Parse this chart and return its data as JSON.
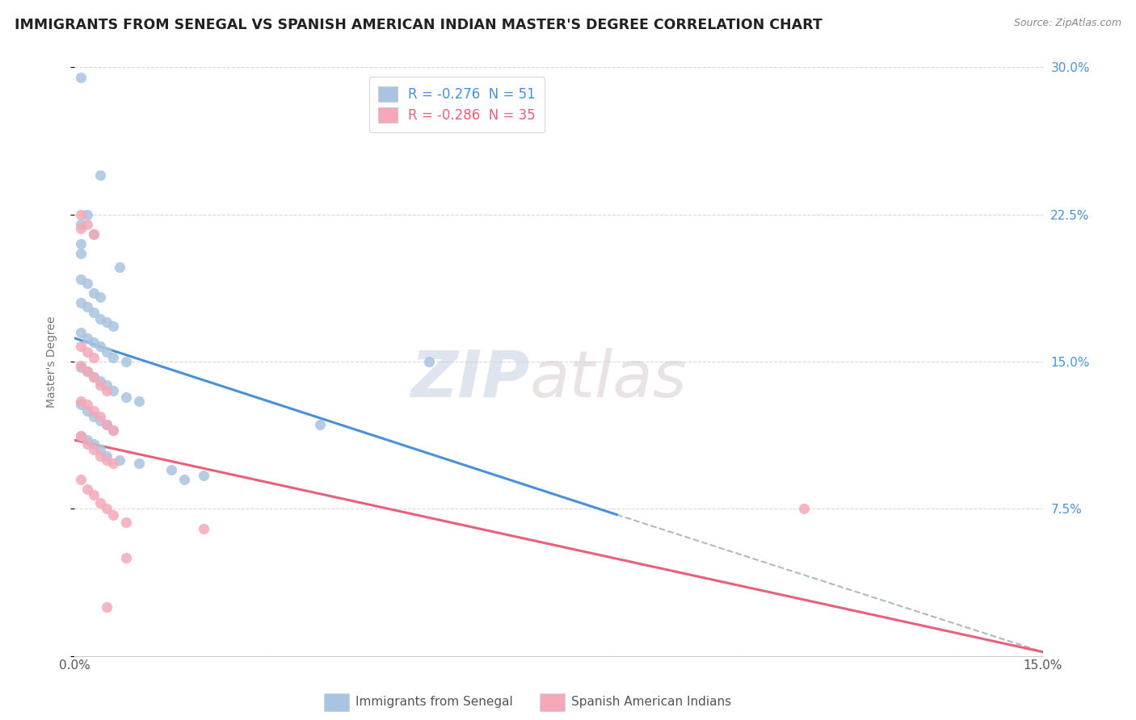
{
  "title": "IMMIGRANTS FROM SENEGAL VS SPANISH AMERICAN INDIAN MASTER'S DEGREE CORRELATION CHART",
  "source": "Source: ZipAtlas.com",
  "ylabel": "Master's Degree",
  "xlim": [
    0.0,
    0.15
  ],
  "ylim": [
    0.0,
    0.3
  ],
  "legend_entries": [
    {
      "label": "R = -0.276  N = 51",
      "color": "#a8c4e0"
    },
    {
      "label": "R = -0.286  N = 35",
      "color": "#f4a8b8"
    }
  ],
  "watermark_zip": "ZIP",
  "watermark_atlas": "atlas",
  "blue_scatter": [
    [
      0.001,
      0.295
    ],
    [
      0.004,
      0.245
    ],
    [
      0.002,
      0.225
    ],
    [
      0.001,
      0.22
    ],
    [
      0.003,
      0.215
    ],
    [
      0.001,
      0.21
    ],
    [
      0.001,
      0.205
    ],
    [
      0.007,
      0.198
    ],
    [
      0.001,
      0.192
    ],
    [
      0.002,
      0.19
    ],
    [
      0.003,
      0.185
    ],
    [
      0.004,
      0.183
    ],
    [
      0.001,
      0.18
    ],
    [
      0.002,
      0.178
    ],
    [
      0.003,
      0.175
    ],
    [
      0.004,
      0.172
    ],
    [
      0.005,
      0.17
    ],
    [
      0.006,
      0.168
    ],
    [
      0.001,
      0.165
    ],
    [
      0.002,
      0.162
    ],
    [
      0.003,
      0.16
    ],
    [
      0.004,
      0.158
    ],
    [
      0.005,
      0.155
    ],
    [
      0.006,
      0.152
    ],
    [
      0.008,
      0.15
    ],
    [
      0.001,
      0.147
    ],
    [
      0.002,
      0.145
    ],
    [
      0.003,
      0.142
    ],
    [
      0.004,
      0.14
    ],
    [
      0.005,
      0.138
    ],
    [
      0.006,
      0.135
    ],
    [
      0.008,
      0.132
    ],
    [
      0.01,
      0.13
    ],
    [
      0.001,
      0.128
    ],
    [
      0.002,
      0.125
    ],
    [
      0.003,
      0.122
    ],
    [
      0.004,
      0.12
    ],
    [
      0.005,
      0.118
    ],
    [
      0.006,
      0.115
    ],
    [
      0.001,
      0.112
    ],
    [
      0.002,
      0.11
    ],
    [
      0.003,
      0.108
    ],
    [
      0.004,
      0.105
    ],
    [
      0.005,
      0.102
    ],
    [
      0.007,
      0.1
    ],
    [
      0.01,
      0.098
    ],
    [
      0.015,
      0.095
    ],
    [
      0.02,
      0.092
    ],
    [
      0.055,
      0.15
    ],
    [
      0.038,
      0.118
    ],
    [
      0.017,
      0.09
    ]
  ],
  "pink_scatter": [
    [
      0.001,
      0.225
    ],
    [
      0.002,
      0.22
    ],
    [
      0.001,
      0.218
    ],
    [
      0.003,
      0.215
    ],
    [
      0.001,
      0.158
    ],
    [
      0.002,
      0.155
    ],
    [
      0.003,
      0.152
    ],
    [
      0.001,
      0.148
    ],
    [
      0.002,
      0.145
    ],
    [
      0.003,
      0.142
    ],
    [
      0.004,
      0.138
    ],
    [
      0.005,
      0.135
    ],
    [
      0.001,
      0.13
    ],
    [
      0.002,
      0.128
    ],
    [
      0.003,
      0.125
    ],
    [
      0.004,
      0.122
    ],
    [
      0.005,
      0.118
    ],
    [
      0.006,
      0.115
    ],
    [
      0.001,
      0.112
    ],
    [
      0.002,
      0.108
    ],
    [
      0.003,
      0.105
    ],
    [
      0.004,
      0.102
    ],
    [
      0.005,
      0.1
    ],
    [
      0.006,
      0.098
    ],
    [
      0.001,
      0.09
    ],
    [
      0.002,
      0.085
    ],
    [
      0.003,
      0.082
    ],
    [
      0.004,
      0.078
    ],
    [
      0.005,
      0.075
    ],
    [
      0.006,
      0.072
    ],
    [
      0.008,
      0.068
    ],
    [
      0.02,
      0.065
    ],
    [
      0.008,
      0.05
    ],
    [
      0.113,
      0.075
    ],
    [
      0.005,
      0.025
    ]
  ],
  "blue_line_x": [
    0.0,
    0.084
  ],
  "blue_line_y": [
    0.162,
    0.072
  ],
  "dashed_line_x": [
    0.084,
    0.15
  ],
  "dashed_line_y": [
    0.072,
    0.002
  ],
  "pink_line_x": [
    0.0,
    0.15
  ],
  "pink_line_y": [
    0.11,
    0.002
  ],
  "scatter_color_blue": "#a8c4e0",
  "scatter_color_pink": "#f4a8b8",
  "line_color_blue": "#4a90d9",
  "line_color_pink": "#e8607a",
  "dashed_line_color": "#b0b8c0",
  "background_color": "#ffffff",
  "grid_color": "#d8d8d8"
}
